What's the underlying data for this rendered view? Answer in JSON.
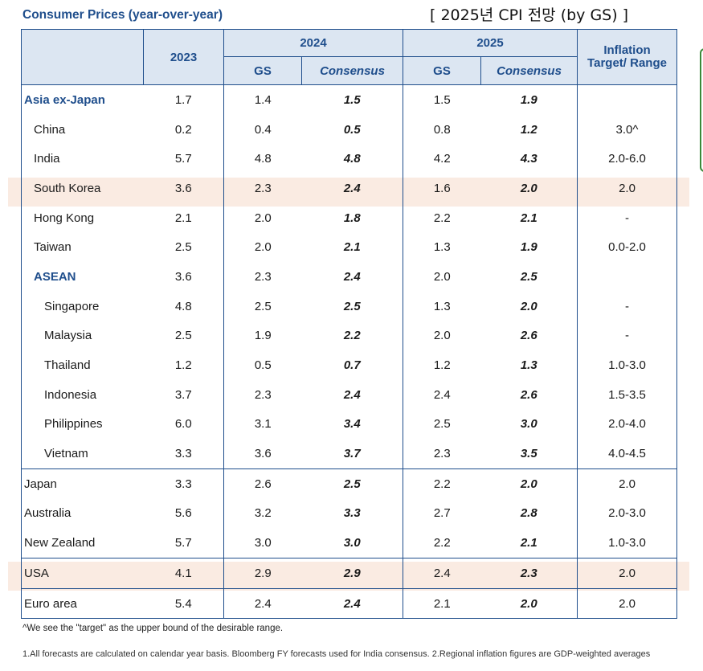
{
  "title": "Consumer Prices (year-over-year)",
  "caption": "[ 2025년 CPI 전망 (by GS) ]",
  "header": {
    "col_2023": "2023",
    "col_2024": "2024",
    "col_2025": "2025",
    "gs": "GS",
    "consensus": "Consensus",
    "inflation_target": "Inflation Target/ Range"
  },
  "rows": [
    {
      "name": "Asia ex-Japan",
      "level": 0,
      "region": true,
      "v2023": "1.7",
      "gs2024": "1.4",
      "cons2024": "1.5",
      "gs2025": "1.5",
      "cons2025": "1.9",
      "target": ""
    },
    {
      "name": "China",
      "level": 1,
      "region": false,
      "v2023": "0.2",
      "gs2024": "0.4",
      "cons2024": "0.5",
      "gs2025": "0.8",
      "cons2025": "1.2",
      "target": "3.0^"
    },
    {
      "name": "India",
      "level": 1,
      "region": false,
      "v2023": "5.7",
      "gs2024": "4.8",
      "cons2024": "4.8",
      "gs2025": "4.2",
      "cons2025": "4.3",
      "target": "2.0-6.0"
    },
    {
      "name": "South Korea",
      "level": 1,
      "region": false,
      "v2023": "3.6",
      "gs2024": "2.3",
      "cons2024": "2.4",
      "gs2025": "1.6",
      "cons2025": "2.0",
      "target": "2.0"
    },
    {
      "name": "Hong Kong",
      "level": 1,
      "region": false,
      "v2023": "2.1",
      "gs2024": "2.0",
      "cons2024": "1.8",
      "gs2025": "2.2",
      "cons2025": "2.1",
      "target": "-"
    },
    {
      "name": "Taiwan",
      "level": 1,
      "region": false,
      "v2023": "2.5",
      "gs2024": "2.0",
      "cons2024": "2.1",
      "gs2025": "1.3",
      "cons2025": "1.9",
      "target": "0.0-2.0"
    },
    {
      "name": "ASEAN",
      "level": 1,
      "region": true,
      "v2023": "3.6",
      "gs2024": "2.3",
      "cons2024": "2.4",
      "gs2025": "2.0",
      "cons2025": "2.5",
      "target": ""
    },
    {
      "name": "Singapore",
      "level": 2,
      "region": false,
      "v2023": "4.8",
      "gs2024": "2.5",
      "cons2024": "2.5",
      "gs2025": "1.3",
      "cons2025": "2.0",
      "target": "-"
    },
    {
      "name": "Malaysia",
      "level": 2,
      "region": false,
      "v2023": "2.5",
      "gs2024": "1.9",
      "cons2024": "2.2",
      "gs2025": "2.0",
      "cons2025": "2.6",
      "target": "-"
    },
    {
      "name": "Thailand",
      "level": 2,
      "region": false,
      "v2023": "1.2",
      "gs2024": "0.5",
      "cons2024": "0.7",
      "gs2025": "1.2",
      "cons2025": "1.3",
      "target": "1.0-3.0"
    },
    {
      "name": "Indonesia",
      "level": 2,
      "region": false,
      "v2023": "3.7",
      "gs2024": "2.3",
      "cons2024": "2.4",
      "gs2025": "2.4",
      "cons2025": "2.6",
      "target": "1.5-3.5"
    },
    {
      "name": "Philippines",
      "level": 2,
      "region": false,
      "v2023": "6.0",
      "gs2024": "3.1",
      "cons2024": "3.4",
      "gs2025": "2.5",
      "cons2025": "3.0",
      "target": "2.0-4.0"
    },
    {
      "name": "Vietnam",
      "level": 2,
      "region": false,
      "v2023": "3.3",
      "gs2024": "3.6",
      "cons2024": "3.7",
      "gs2025": "2.3",
      "cons2025": "3.5",
      "target": "4.0-4.5"
    },
    {
      "name": "Japan",
      "level": 0,
      "region": false,
      "sep": true,
      "v2023": "3.3",
      "gs2024": "2.6",
      "cons2024": "2.5",
      "gs2025": "2.2",
      "cons2025": "2.0",
      "target": "2.0"
    },
    {
      "name": "Australia",
      "level": 0,
      "region": false,
      "v2023": "5.6",
      "gs2024": "3.2",
      "cons2024": "3.3",
      "gs2025": "2.7",
      "cons2025": "2.8",
      "target": "2.0-3.0"
    },
    {
      "name": "New Zealand",
      "level": 0,
      "region": false,
      "v2023": "5.7",
      "gs2024": "3.0",
      "cons2024": "3.0",
      "gs2025": "2.2",
      "cons2025": "2.1",
      "target": "1.0-3.0"
    },
    {
      "name": "USA",
      "level": 0,
      "region": false,
      "sep": true,
      "v2023": "4.1",
      "gs2024": "2.9",
      "cons2024": "2.9",
      "gs2025": "2.4",
      "cons2025": "2.3",
      "target": "2.0"
    },
    {
      "name": "Euro area",
      "level": 0,
      "region": false,
      "sep": true,
      "v2023": "5.4",
      "gs2024": "2.4",
      "cons2024": "2.4",
      "gs2025": "2.1",
      "cons2025": "2.0",
      "target": "2.0"
    }
  ],
  "highlight_color": "#f8e4d8",
  "note": "^We see the \"target\" as the upper bound of the desirable range.",
  "footnote": "1.All forecasts are calculated on calendar year basis. Bloomberg FY forecasts used for India consensus. 2.Regional inflation figures are GDP-weighted averages"
}
